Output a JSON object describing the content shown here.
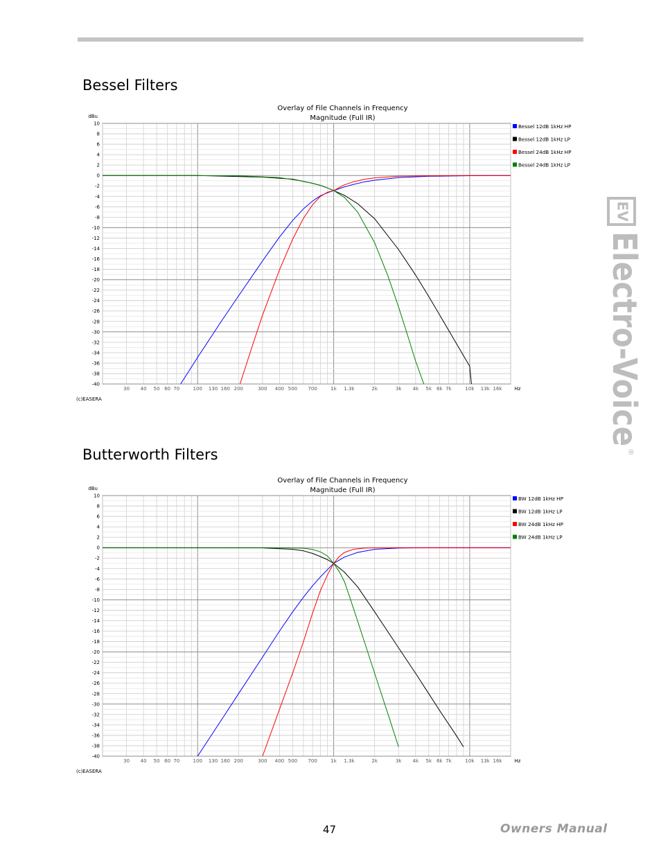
{
  "page": {
    "page_number": "47",
    "footer_label": "Owners Manual",
    "brand": {
      "logo_mark": "EV",
      "wordmark": "Electro-Voice",
      "registered": "®"
    }
  },
  "colors": {
    "blue": "#0000ff",
    "black": "#000000",
    "red": "#ff0000",
    "green": "#008000"
  },
  "sections": [
    {
      "heading": "Bessel Filters"
    },
    {
      "heading": "Butterworth Filters"
    }
  ],
  "chart_data": [
    {
      "type": "line",
      "title": "Overlay of File Channels in Frequency",
      "subtitle": "Magnitude (Full IR)",
      "ylabel": "dBu",
      "xlabel": "Hz",
      "xscale": "log",
      "xlim": [
        20,
        20000
      ],
      "ylim": [
        -40,
        10
      ],
      "grid": true,
      "legend_position": "right",
      "credit": "(c)EASERA",
      "x_ticks": [
        {
          "v": 30,
          "label": "30"
        },
        {
          "v": 40,
          "label": "40"
        },
        {
          "v": 50,
          "label": "50"
        },
        {
          "v": 60,
          "label": "60"
        },
        {
          "v": 70,
          "label": "70"
        },
        {
          "v": 100,
          "label": "100"
        },
        {
          "v": 130,
          "label": "130"
        },
        {
          "v": 160,
          "label": "160"
        },
        {
          "v": 200,
          "label": "200"
        },
        {
          "v": 300,
          "label": "300"
        },
        {
          "v": 400,
          "label": "400"
        },
        {
          "v": 500,
          "label": "500"
        },
        {
          "v": 700,
          "label": "700"
        },
        {
          "v": 1000,
          "label": "1k"
        },
        {
          "v": 1300,
          "label": "1.3k"
        },
        {
          "v": 2000,
          "label": "2k"
        },
        {
          "v": 3000,
          "label": "3k"
        },
        {
          "v": 4000,
          "label": "4k"
        },
        {
          "v": 5000,
          "label": "5k"
        },
        {
          "v": 6000,
          "label": "6k"
        },
        {
          "v": 7000,
          "label": "7k"
        },
        {
          "v": 10000,
          "label": "10k"
        },
        {
          "v": 13000,
          "label": "13k"
        },
        {
          "v": 16000,
          "label": "16k"
        }
      ],
      "y_ticks": [
        10,
        8,
        6,
        4,
        2,
        0,
        -2,
        -4,
        -6,
        -8,
        -10,
        -12,
        -14,
        -16,
        -18,
        -20,
        -22,
        -24,
        -26,
        -28,
        -30,
        -32,
        -34,
        -36,
        -38,
        -40
      ],
      "series": [
        {
          "name": "Bessel 12dB 1kHz HP",
          "color": "#0000ff",
          "x": [
            75,
            100,
            150,
            200,
            300,
            400,
            500,
            600,
            700,
            800,
            900,
            1000,
            1200,
            1400,
            1700,
            2000,
            3000,
            5000,
            10000,
            20000
          ],
          "y": [
            -40,
            -34.9,
            -27.9,
            -23.1,
            -16.4,
            -11.8,
            -8.6,
            -6.4,
            -4.9,
            -3.9,
            -3.3,
            -2.9,
            -2.2,
            -1.7,
            -1.2,
            -0.9,
            -0.4,
            -0.15,
            -0.04,
            0
          ]
        },
        {
          "name": "Bessel 12dB 1kHz LP",
          "color": "#000000",
          "x": [
            20,
            100,
            300,
            500,
            700,
            800,
            900,
            1000,
            1200,
            1500,
            2000,
            3000,
            4000,
            5000,
            7000,
            10000,
            10300
          ],
          "y": [
            0,
            -0.01,
            -0.3,
            -0.7,
            -1.5,
            -1.9,
            -2.4,
            -2.9,
            -3.8,
            -5.4,
            -8.3,
            -14.2,
            -19.1,
            -23.2,
            -29.7,
            -36.6,
            -40
          ]
        },
        {
          "name": "Bessel 24dB 1kHz HP",
          "color": "#ff0000",
          "x": [
            205,
            250,
            300,
            400,
            500,
            600,
            700,
            800,
            900,
            1000,
            1100,
            1200,
            1400,
            1700,
            2000,
            3000,
            5000,
            10000,
            20000
          ],
          "y": [
            -40,
            -33,
            -26.8,
            -18.1,
            -12.2,
            -8.2,
            -5.6,
            -4.0,
            -3.2,
            -2.9,
            -2.3,
            -1.8,
            -1.2,
            -0.7,
            -0.45,
            -0.15,
            -0.05,
            -0.01,
            0
          ]
        },
        {
          "name": "Bessel 24dB 1kHz LP",
          "color": "#008000",
          "x": [
            20,
            200,
            400,
            600,
            700,
            800,
            900,
            1000,
            1200,
            1500,
            2000,
            2500,
            3000,
            3500,
            4000,
            4600
          ],
          "y": [
            0,
            -0.05,
            -0.4,
            -1.1,
            -1.5,
            -1.9,
            -2.4,
            -2.9,
            -4.2,
            -7.0,
            -12.9,
            -19.2,
            -25.2,
            -30.7,
            -35.6,
            -40
          ]
        }
      ]
    },
    {
      "type": "line",
      "title": "Overlay of File Channels in Frequency",
      "subtitle": "Magnitude (Full IR)",
      "ylabel": "dBu",
      "xlabel": "Hz",
      "xscale": "log",
      "xlim": [
        20,
        20000
      ],
      "ylim": [
        -40,
        10
      ],
      "grid": true,
      "legend_position": "right",
      "credit": "(c)EASERA",
      "x_ticks": [
        {
          "v": 30,
          "label": "30"
        },
        {
          "v": 40,
          "label": "40"
        },
        {
          "v": 50,
          "label": "50"
        },
        {
          "v": 60,
          "label": "60"
        },
        {
          "v": 70,
          "label": "70"
        },
        {
          "v": 100,
          "label": "100"
        },
        {
          "v": 130,
          "label": "130"
        },
        {
          "v": 160,
          "label": "160"
        },
        {
          "v": 200,
          "label": "200"
        },
        {
          "v": 300,
          "label": "300"
        },
        {
          "v": 400,
          "label": "400"
        },
        {
          "v": 500,
          "label": "500"
        },
        {
          "v": 700,
          "label": "700"
        },
        {
          "v": 1000,
          "label": "1k"
        },
        {
          "v": 1300,
          "label": "1.3k"
        },
        {
          "v": 2000,
          "label": "2k"
        },
        {
          "v": 3000,
          "label": "3k"
        },
        {
          "v": 4000,
          "label": "4k"
        },
        {
          "v": 5000,
          "label": "5k"
        },
        {
          "v": 6000,
          "label": "6k"
        },
        {
          "v": 7000,
          "label": "7k"
        },
        {
          "v": 10000,
          "label": "10k"
        },
        {
          "v": 13000,
          "label": "13k"
        },
        {
          "v": 16000,
          "label": "16k"
        }
      ],
      "y_ticks": [
        10,
        8,
        6,
        4,
        2,
        0,
        -2,
        -4,
        -6,
        -8,
        -10,
        -12,
        -14,
        -16,
        -18,
        -20,
        -22,
        -24,
        -26,
        -28,
        -30,
        -32,
        -34,
        -36,
        -38,
        -40
      ],
      "series": [
        {
          "name": "BW 12dB 1kHz HP",
          "color": "#0000ff",
          "x": [
            100,
            150,
            200,
            300,
            400,
            500,
            600,
            700,
            800,
            900,
            1000,
            1200,
            1500,
            2000,
            3000,
            5000,
            10000,
            20000
          ],
          "y": [
            -40,
            -33,
            -28,
            -21,
            -16,
            -12.3,
            -9.5,
            -7.3,
            -5.6,
            -4.2,
            -3.0,
            -1.8,
            -0.9,
            -0.3,
            -0.06,
            -0.01,
            0,
            0
          ]
        },
        {
          "name": "BW 12dB 1kHz LP",
          "color": "#000000",
          "x": [
            20,
            300,
            500,
            600,
            700,
            800,
            900,
            1000,
            1200,
            1500,
            2000,
            3000,
            4000,
            5000,
            6000,
            8000,
            9000
          ],
          "y": [
            0,
            -0.04,
            -0.3,
            -0.6,
            -1.1,
            -1.7,
            -2.3,
            -3.0,
            -4.7,
            -7.5,
            -12.3,
            -19.2,
            -24.1,
            -28.0,
            -31.2,
            -36.1,
            -38.2
          ]
        },
        {
          "name": "BW 24dB 1kHz HP",
          "color": "#ff0000",
          "x": [
            300,
            400,
            500,
            600,
            700,
            800,
            900,
            1000,
            1100,
            1200,
            1400,
            1700,
            2000,
            3000,
            5000,
            10000,
            20000
          ],
          "y": [
            -40,
            -31,
            -24,
            -18,
            -12.5,
            -8.2,
            -5.2,
            -3.0,
            -1.7,
            -0.9,
            -0.3,
            -0.08,
            -0.02,
            0,
            0,
            0,
            0
          ]
        },
        {
          "name": "BW 24dB 1kHz LP",
          "color": "#008000",
          "x": [
            20,
            400,
            600,
            700,
            800,
            900,
            1000,
            1100,
            1200,
            1400,
            1700,
            2000,
            2500,
            3000
          ],
          "y": [
            0,
            -0.01,
            -0.1,
            -0.35,
            -0.8,
            -1.6,
            -3.0,
            -4.6,
            -6.5,
            -11.7,
            -18.4,
            -24.1,
            -31.8,
            -38.2
          ]
        }
      ]
    }
  ]
}
